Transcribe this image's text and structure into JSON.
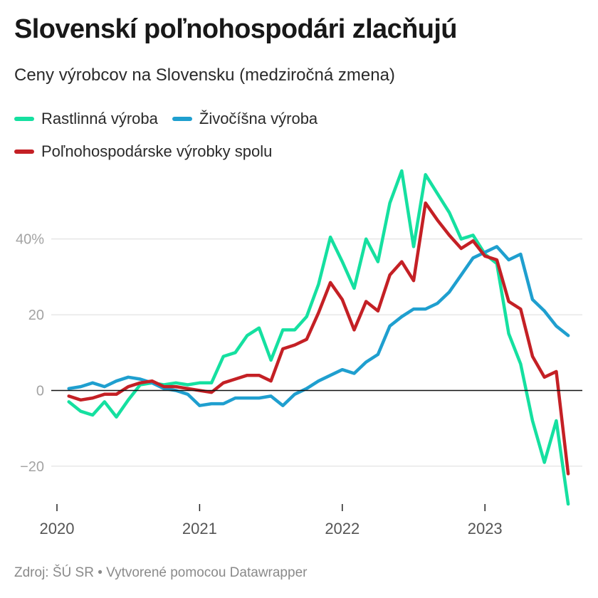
{
  "title": "Slovenskí poľnohospodári zlacňujú",
  "subtitle": "Ceny výrobcov na Slovensku (medziročná zmena)",
  "source": "Zdroj: ŠÚ SR • Vytvorené pomocou Datawrapper",
  "chart_data": {
    "type": "line",
    "ylim": [
      -30,
      58
    ],
    "yticks": [
      "40%",
      "20",
      "0",
      "−20"
    ],
    "ytick_values": [
      40,
      20,
      0,
      -20
    ],
    "xticks": [
      "2020",
      "2021",
      "2022",
      "2023"
    ],
    "xtick_values": [
      "2020-01",
      "2021-01",
      "2022-01",
      "2023-01"
    ],
    "zero_line": true,
    "grid": true,
    "legend_position": "top",
    "x": [
      "2020-02",
      "2020-03",
      "2020-04",
      "2020-05",
      "2020-06",
      "2020-07",
      "2020-08",
      "2020-09",
      "2020-10",
      "2020-11",
      "2020-12",
      "2021-01",
      "2021-02",
      "2021-03",
      "2021-04",
      "2021-05",
      "2021-06",
      "2021-07",
      "2021-08",
      "2021-09",
      "2021-10",
      "2021-11",
      "2021-12",
      "2022-01",
      "2022-02",
      "2022-03",
      "2022-04",
      "2022-05",
      "2022-06",
      "2022-07",
      "2022-08",
      "2022-09",
      "2022-10",
      "2022-11",
      "2022-12",
      "2023-01",
      "2023-02",
      "2023-03",
      "2023-04",
      "2023-05",
      "2023-06",
      "2023-07",
      "2023-08"
    ],
    "series": [
      {
        "name": "Rastlinná výroba",
        "color": "#15e0a0",
        "values": [
          -3,
          -5.5,
          -6.5,
          -3,
          -7,
          -2.5,
          1.5,
          2,
          1.5,
          2,
          1.5,
          2,
          2,
          9,
          10,
          14.5,
          16.5,
          8,
          16,
          16,
          19.5,
          28,
          40.5,
          34,
          27,
          40,
          34,
          49.5,
          58,
          38,
          57,
          52,
          47,
          40,
          41,
          36,
          33.5,
          15,
          7,
          -8,
          -19,
          -8,
          -30
        ]
      },
      {
        "name": "Živočíšna výroba",
        "color": "#1f9fcf",
        "values": [
          0.5,
          1,
          2,
          1,
          2.5,
          3.5,
          3,
          2,
          0.5,
          0,
          -1,
          -4,
          -3.5,
          -3.5,
          -2,
          -2,
          -2,
          -1.5,
          -4,
          -1,
          0.5,
          2.5,
          4,
          5.5,
          4.5,
          7.5,
          9.5,
          17,
          19.5,
          21.5,
          21.5,
          23,
          26,
          30.5,
          35,
          36.5,
          38,
          34.5,
          36,
          24,
          21,
          17,
          14.5
        ]
      },
      {
        "name": "Poľnohospodárske výrobky spolu",
        "color": "#c42025",
        "values": [
          -1.5,
          -2.5,
          -2,
          -1,
          -1,
          1,
          2,
          2.5,
          1,
          1,
          0.5,
          0,
          -0.5,
          2,
          3,
          4,
          4,
          2.5,
          11,
          12,
          13.5,
          20.5,
          28.5,
          24,
          16,
          23.5,
          21,
          30.5,
          34,
          29,
          49.5,
          45,
          41,
          37.5,
          39.5,
          35.5,
          34.5,
          23.5,
          21.5,
          9,
          3.5,
          5,
          -22
        ]
      }
    ]
  }
}
